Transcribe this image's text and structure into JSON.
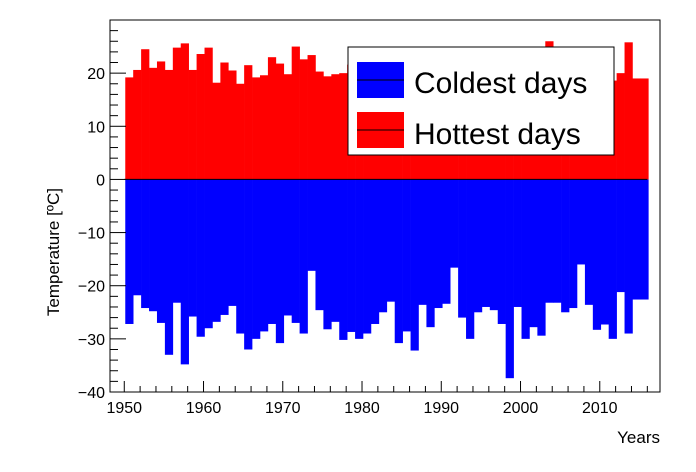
{
  "chart_data": {
    "type": "bar",
    "xlabel": "Years",
    "ylabel": "Temperature [ºC]",
    "xlim": [
      1948.2,
      1917.6
    ],
    "ylim": [
      -40,
      30
    ],
    "x_ticks": [
      "1950",
      "1960",
      "1970",
      "1980",
      "1990",
      "2000",
      "2010"
    ],
    "y_ticks": [
      "−40",
      "−30",
      "−20",
      "−10",
      "0",
      "10",
      "20"
    ],
    "grid": false,
    "legend_position": "top-right",
    "x": [
      1950,
      1951,
      1952,
      1953,
      1954,
      1955,
      1956,
      1957,
      1958,
      1959,
      1960,
      1961,
      1962,
      1963,
      1964,
      1965,
      1966,
      1967,
      1968,
      1969,
      1970,
      1971,
      1972,
      1973,
      1974,
      1975,
      1976,
      1977,
      1978,
      1979,
      1980,
      1981,
      1982,
      1983,
      1984,
      1985,
      1986,
      1987,
      1988,
      1989,
      1990,
      1991,
      1992,
      1993,
      1994,
      1995,
      1996,
      1997,
      1998,
      1999,
      2000,
      2001,
      2002,
      2003,
      2004,
      2005,
      2006,
      2007,
      2008,
      2009,
      2010,
      2011,
      2012,
      2013,
      2014,
      2015
    ],
    "series": [
      {
        "name": "Coldest days",
        "color": "#0000ff",
        "values": [
          -27.2,
          -21.8,
          -24.2,
          -24.8,
          -27.0,
          -33.0,
          -23.2,
          -34.8,
          -25.8,
          -29.6,
          -28.0,
          -26.8,
          -25.5,
          -23.8,
          -29.0,
          -32.0,
          -30.0,
          -28.6,
          -27.2,
          -30.8,
          -25.6,
          -27.0,
          -29.0,
          -17.2,
          -24.6,
          -28.2,
          -26.8,
          -30.2,
          -28.7,
          -30.0,
          -29.0,
          -27.2,
          -25.0,
          -23.0,
          -30.8,
          -28.6,
          -32.2,
          -23.6,
          -27.8,
          -24.2,
          -23.4,
          -16.6,
          -26.0,
          -30.0,
          -25.0,
          -24.0,
          -24.6,
          -27.2,
          -37.4,
          -24.0,
          -30.0,
          -27.8,
          -29.4,
          -23.2,
          -23.2,
          -25.0,
          -24.2,
          -16.0,
          -23.6,
          -28.3,
          -27.3,
          -30.0,
          -21.2,
          -29.0,
          -22.6,
          -22.6
        ]
      },
      {
        "name": "Hottest days",
        "color": "#ff0000",
        "values": [
          19.2,
          20.6,
          24.5,
          21.0,
          22.2,
          20.6,
          24.8,
          25.6,
          20.6,
          23.6,
          24.8,
          18.2,
          22.0,
          20.5,
          18.0,
          21.5,
          19.2,
          19.6,
          23.0,
          21.8,
          19.8,
          25.0,
          22.6,
          23.4,
          20.3,
          19.4,
          19.8,
          20.0,
          21.6,
          19.4,
          20.2,
          20.8,
          20.0,
          19.8,
          20.0,
          19.6,
          20.2,
          21.8,
          24.4,
          20.0,
          20.0,
          20.8,
          20.2,
          19.6,
          19.8,
          20.2,
          19.8,
          21.0,
          20.0,
          19.4,
          20.8,
          20.2,
          22.6,
          26.0,
          20.8,
          20.8,
          20.2,
          21.0,
          20.4,
          21.4,
          24.4,
          18.6,
          20.0,
          25.8,
          19.0,
          19.0
        ]
      }
    ]
  }
}
